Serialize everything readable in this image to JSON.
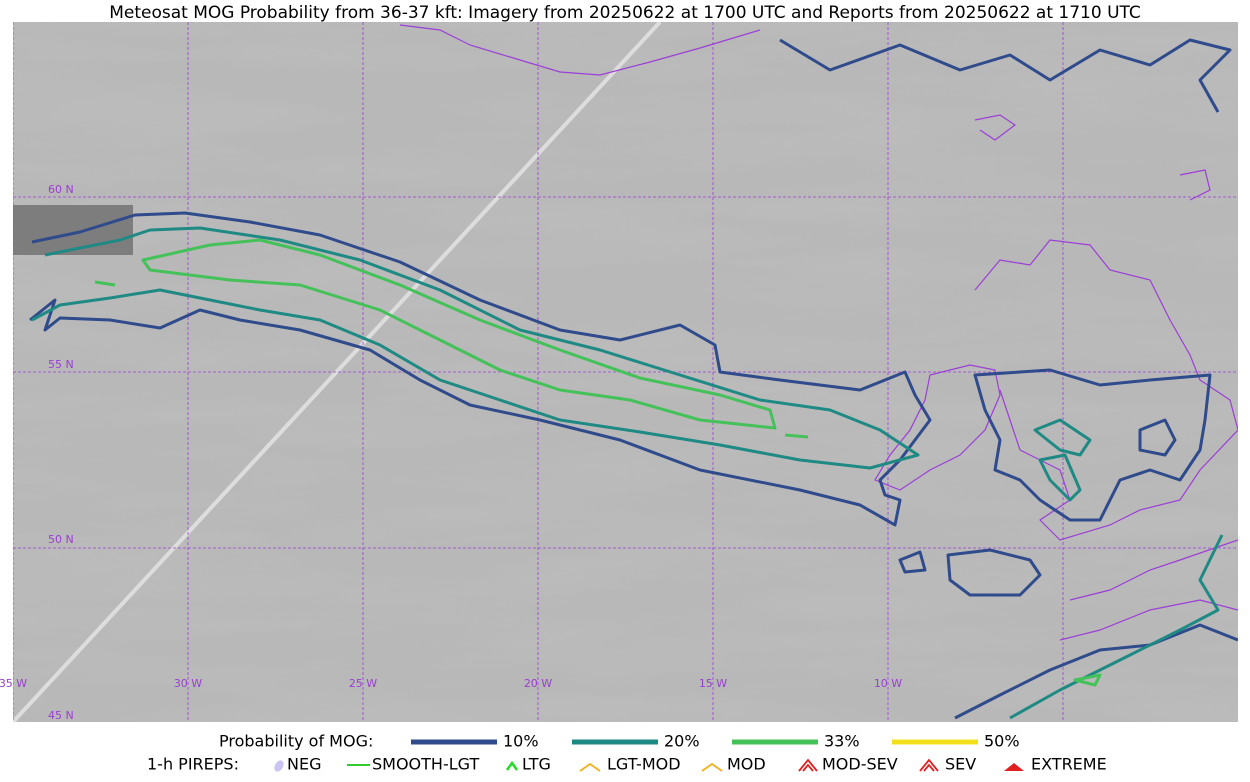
{
  "title": "Meteosat MOG Probability from 36-37 kft: Imagery from 20250622 at 1700 UTC and Reports from 20250622 at 1710 UTC",
  "map": {
    "lat_labels": [
      "60 N",
      "55 N",
      "50 N",
      "45 N"
    ],
    "lon_labels": [
      "35 W",
      "30 W",
      "25 W",
      "20 W",
      "15 W",
      "10 W"
    ]
  },
  "legend": {
    "mog_title": "Probability of MOG:",
    "mog_levels": [
      {
        "label": "10%",
        "color": "#2f4b8c"
      },
      {
        "label": "20%",
        "color": "#1f8a84"
      },
      {
        "label": "33%",
        "color": "#45c15a"
      },
      {
        "label": "50%",
        "color": "#f2e01c"
      }
    ],
    "pirep_title": "1-h PIREPS:",
    "pireps": [
      {
        "label": "NEG",
        "color": "#c8c4f4"
      },
      {
        "label": "SMOOTH-LGT",
        "color": "#33cc33"
      },
      {
        "label": "LTG",
        "color": "#22dd22"
      },
      {
        "label": "LGT-MOD",
        "color": "#f0b020"
      },
      {
        "label": "MOD",
        "color": "#f0b020"
      },
      {
        "label": "MOD-SEV",
        "color": "#e02020"
      },
      {
        "label": "SEV",
        "color": "#e02020"
      },
      {
        "label": "EXTREME",
        "color": "#e02020"
      }
    ]
  }
}
